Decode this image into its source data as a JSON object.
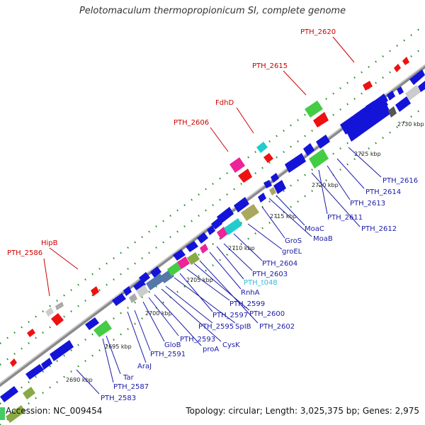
{
  "title": "Pelotomaculum thermopropionicum SI, complete genome",
  "footer": {
    "accession": "Accession: NC_009454",
    "topology": "Topology: circular; Length: 3,025,375 bp; Genes: 2,975"
  },
  "colors": {
    "cds": "#1414d8",
    "rrna": "#44cc44",
    "trna": "#22cccc",
    "pink": "#ee2299",
    "red": "#ee1111",
    "olive": "#aaa860",
    "steel": "#5577aa",
    "gray": "#888888",
    "backbone": "#999999",
    "tick": "#228822",
    "label_red": "#cc0000",
    "label_blue": "#1a1aa6",
    "label_cyan": "#33bbdd"
  },
  "map": {
    "kbp_ticks": [
      "2690 kbp",
      "2695 kbp",
      "2700 kbp",
      "2705 kbp",
      "2710 kbp",
      "2715 kbp",
      "2720 kbp",
      "2725 kbp",
      "2730 kbp"
    ],
    "outer_labels": [
      "PTH_2586",
      "HipB",
      "PTH_2606",
      "FdhD",
      "PTH_2615",
      "PTH_2620"
    ],
    "inner_labels": [
      "PTH_2583",
      "PTH_2587",
      "Tar",
      "AraJ",
      "PTH_2591",
      "GloB",
      "PTH_2593",
      "proA",
      "CysK",
      "PTH_2595",
      "SpIB",
      "PTH_2597",
      "PTH_2599",
      "PTH_2600",
      "PTH_2602",
      "RnhA",
      "PTH_t048",
      "PTH_2603",
      "PTH_2604",
      "groEL",
      "GroS",
      "MoaB",
      "MoaC",
      "PTH_2612",
      "PTH_2611",
      "PTH_2613",
      "PTH_2614",
      "PTH_2616"
    ]
  }
}
